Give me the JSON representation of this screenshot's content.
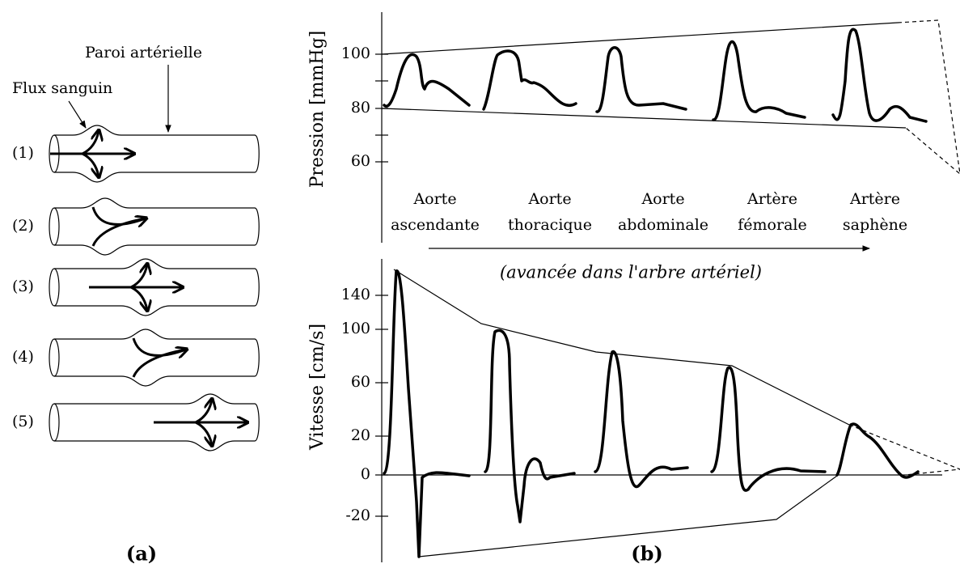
{
  "panel_a": {
    "label": "(a)",
    "wall": "Paroi artérielle",
    "flow": "Flux sanguin",
    "tubes": [
      "(1)",
      "(2)",
      "(3)",
      "(4)",
      "(5)"
    ]
  },
  "panel_b": {
    "label": "(b)",
    "pressure_axis": {
      "title": "Pression [mmHg]",
      "ticks": [
        "100",
        "80",
        "60"
      ]
    },
    "velocity_axis": {
      "title": "Vitesse [cm/s]",
      "ticks": [
        "140",
        "100",
        "60",
        "20",
        "0",
        "-20"
      ]
    },
    "sites": [
      [
        "Aorte",
        "ascendante"
      ],
      [
        "Aorte",
        "thoracique"
      ],
      [
        "Aorte",
        "abdominale"
      ],
      [
        "Artère",
        "fémorale"
      ],
      [
        "Artère",
        "saphène"
      ]
    ],
    "direction": "(avancée dans l'arbre artériel)"
  }
}
